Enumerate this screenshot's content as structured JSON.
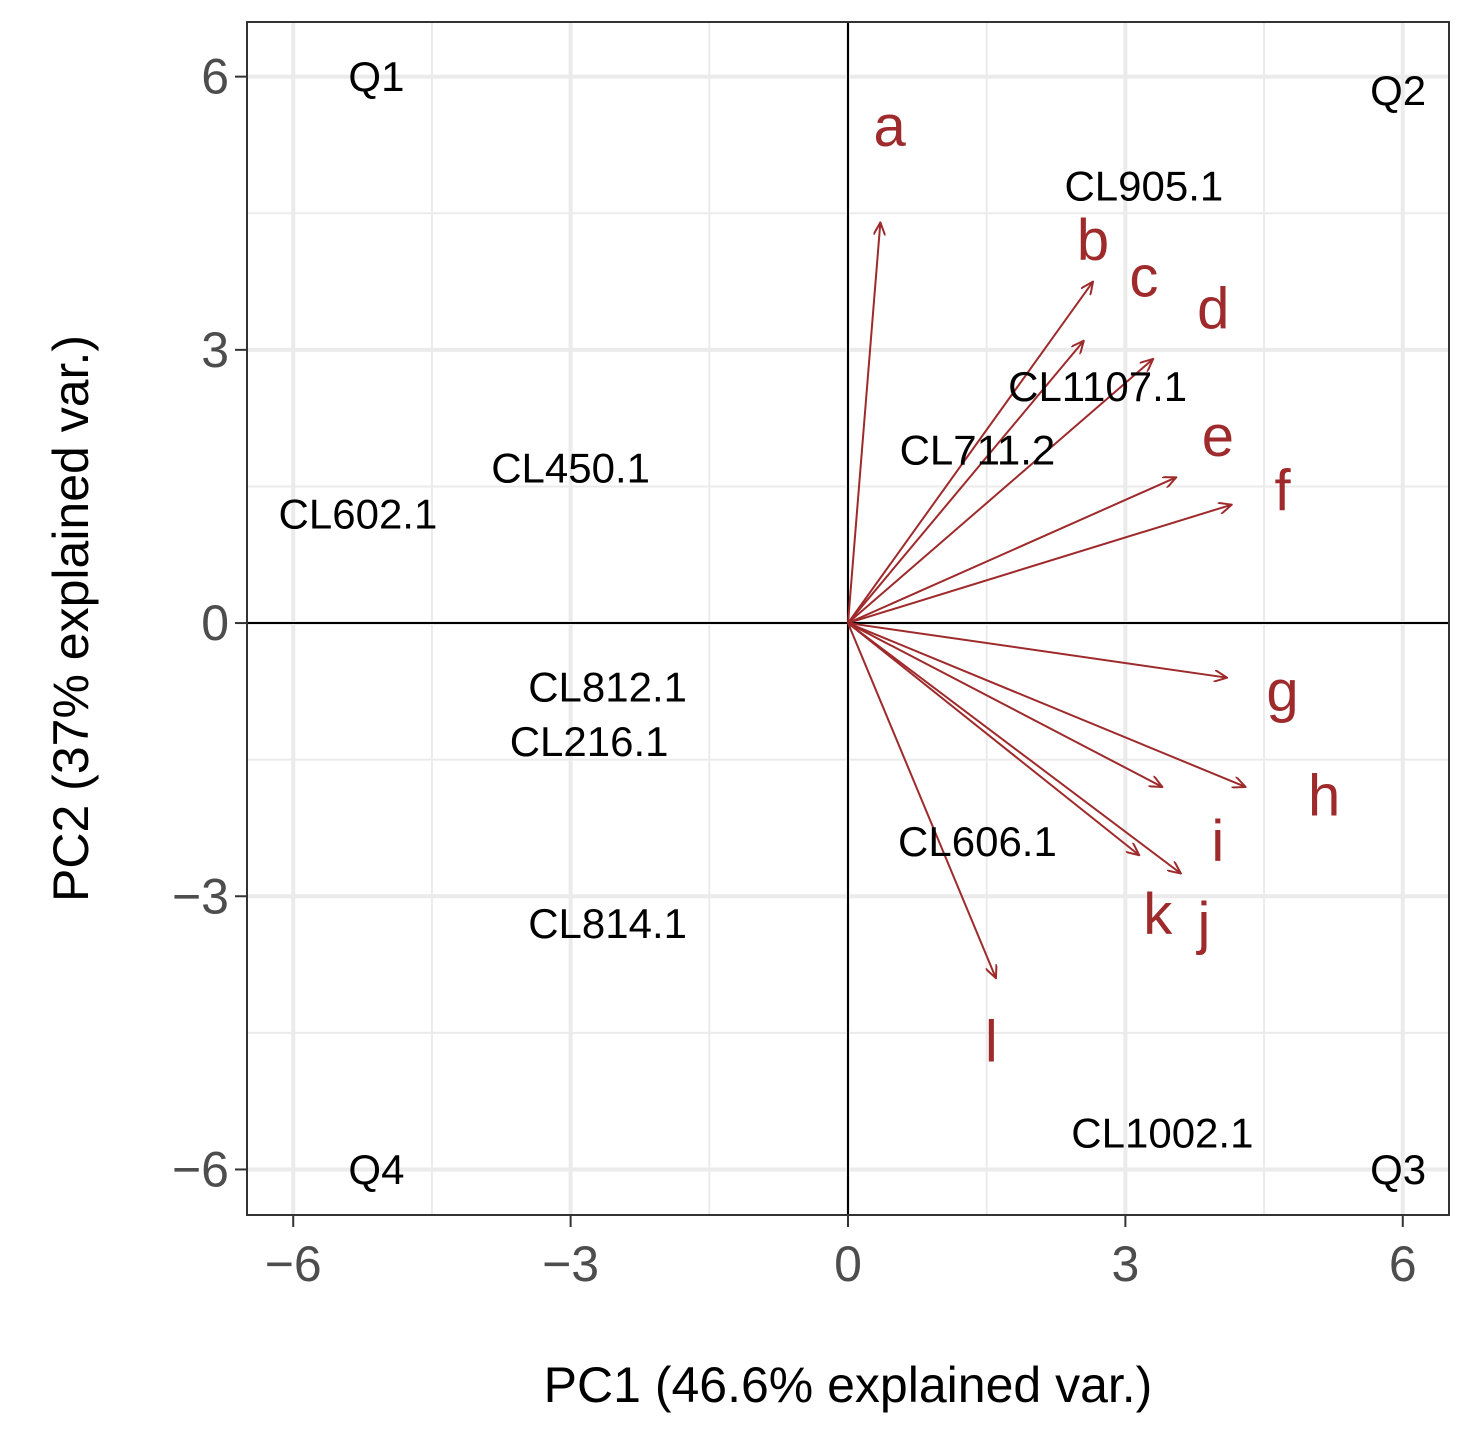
{
  "chart_data": {
    "type": "scatter",
    "subtype": "pca-biplot",
    "xlabel": "PC1 (46.6% explained var.)",
    "ylabel": "PC2 (37% explained var.)",
    "xlim": [
      -6.5,
      6.5
    ],
    "ylim": [
      -6.5,
      6.6
    ],
    "ticks": {
      "x": [
        -6,
        -3,
        0,
        3,
        6
      ],
      "y": [
        -6,
        -3,
        0,
        3,
        6
      ],
      "x_labels": [
        "−6",
        "−3",
        "0",
        "3",
        "6"
      ],
      "y_labels": [
        "−6",
        "−3",
        "0",
        "3",
        "6"
      ]
    },
    "grid": true,
    "colors": {
      "arrow": "#9e2a2b",
      "grid": "#ebebeb",
      "panel_border": "#333333",
      "axis_line": "#000000"
    },
    "quadrants": [
      {
        "label": "Q1",
        "x": -5.1,
        "y": 6.0
      },
      {
        "label": "Q2",
        "x": 5.95,
        "y": 5.85
      },
      {
        "label": "Q3",
        "x": 5.95,
        "y": -6.0
      },
      {
        "label": "Q4",
        "x": -5.1,
        "y": -6.0
      }
    ],
    "points": [
      {
        "label": "CL905.1",
        "x": 3.2,
        "y": 4.8
      },
      {
        "label": "CL1107.1",
        "x": 2.7,
        "y": 2.6
      },
      {
        "label": "CL711.2",
        "x": 1.4,
        "y": 1.9
      },
      {
        "label": "CL450.1",
        "x": -3.0,
        "y": 1.7
      },
      {
        "label": "CL602.1",
        "x": -5.3,
        "y": 1.2
      },
      {
        "label": "CL812.1",
        "x": -2.6,
        "y": -0.7
      },
      {
        "label": "CL216.1",
        "x": -2.8,
        "y": -1.3
      },
      {
        "label": "CL606.1",
        "x": 1.4,
        "y": -2.4
      },
      {
        "label": "CL814.1",
        "x": -2.6,
        "y": -3.3
      },
      {
        "label": "CL1002.1",
        "x": 3.4,
        "y": -5.6
      }
    ],
    "variables": [
      {
        "name": "a",
        "x": 0.35,
        "y": 4.4,
        "label_x": 0.45,
        "label_y": 5.45
      },
      {
        "name": "b",
        "x": 2.65,
        "y": 3.75,
        "label_x": 2.65,
        "label_y": 4.2
      },
      {
        "name": "c",
        "x": 2.55,
        "y": 3.1,
        "label_x": 3.2,
        "label_y": 3.8
      },
      {
        "name": "d",
        "x": 3.3,
        "y": 2.9,
        "label_x": 3.95,
        "label_y": 3.45
      },
      {
        "name": "e",
        "x": 3.55,
        "y": 1.6,
        "label_x": 4.0,
        "label_y": 2.05
      },
      {
        "name": "f",
        "x": 4.15,
        "y": 1.3,
        "label_x": 4.7,
        "label_y": 1.45
      },
      {
        "name": "g",
        "x": 4.1,
        "y": -0.6,
        "label_x": 4.7,
        "label_y": -0.75
      },
      {
        "name": "h",
        "x": 4.3,
        "y": -1.8,
        "label_x": 5.15,
        "label_y": -1.9
      },
      {
        "name": "i",
        "x": 3.4,
        "y": -1.8,
        "label_x": 4.0,
        "label_y": -2.4
      },
      {
        "name": "k",
        "x": 3.15,
        "y": -2.55,
        "label_x": 3.35,
        "label_y": -3.2
      },
      {
        "name": "j",
        "x": 3.6,
        "y": -2.75,
        "label_x": 3.85,
        "label_y": -3.3
      },
      {
        "name": "l",
        "x": 1.6,
        "y": -3.9,
        "label_x": 1.55,
        "label_y": -4.6
      }
    ]
  }
}
